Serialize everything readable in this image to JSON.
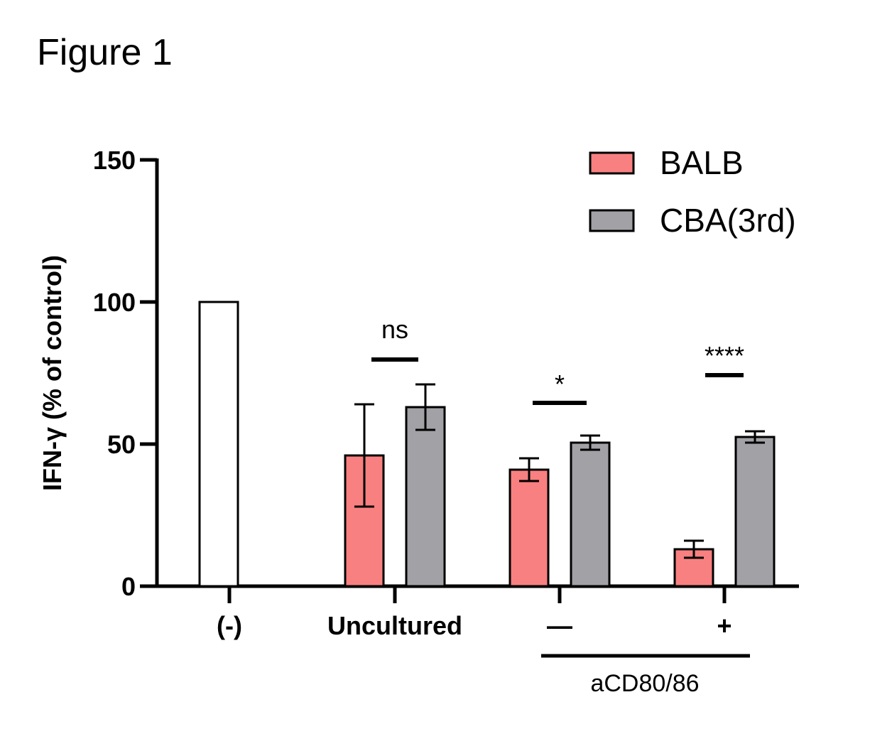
{
  "figure_label": "Figure 1",
  "chart_data": {
    "type": "bar",
    "title": "",
    "ylabel": "IFN-γ (% of control)",
    "xlabel": "",
    "ylim": [
      0,
      150
    ],
    "yticks": [
      0,
      50,
      100,
      150
    ],
    "categories": [
      "(-)",
      "Uncultured",
      "—",
      "+"
    ],
    "group_label": "aCD80/86",
    "legend": {
      "position": "top-right"
    },
    "control": {
      "category": "(-)",
      "value": 100,
      "color": "#ffffff"
    },
    "series": [
      {
        "name": "BALB",
        "color": "#f98080",
        "values": [
          null,
          46,
          41,
          13
        ],
        "errors": [
          null,
          18,
          4,
          3
        ]
      },
      {
        "name": "CBA(3rd)",
        "color": "#a2a1a6",
        "values": [
          null,
          63,
          50.5,
          52.5
        ],
        "errors": [
          null,
          8,
          2.5,
          2
        ]
      }
    ],
    "significance": [
      {
        "category": "Uncultured",
        "label": "ns"
      },
      {
        "category": "—",
        "label": "*"
      },
      {
        "category": "+",
        "label": "****"
      }
    ]
  }
}
